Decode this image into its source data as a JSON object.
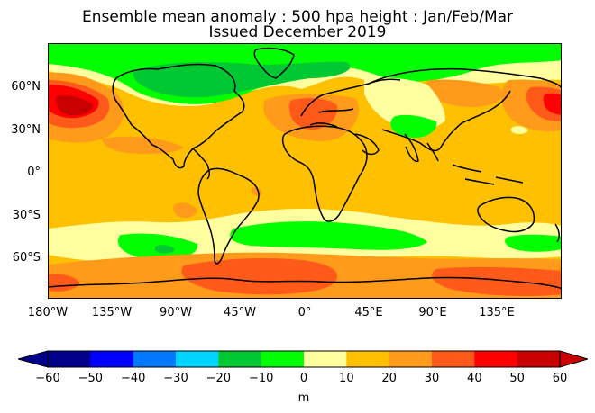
{
  "title_line1": "Ensemble mean anomaly : 500 hpa height : Jan/Feb/Mar",
  "title_line2": "Issued December 2019",
  "lat_labels": [
    "60°N",
    "30°N",
    "0°",
    "30°S",
    "60°S"
  ],
  "lon_labels": [
    "180°W",
    "135°W",
    "90°W",
    "45°W",
    "0°",
    "45°E",
    "90°E",
    "135°E"
  ],
  "colorbar": {
    "ticks": [
      "−60",
      "−50",
      "−40",
      "−30",
      "−20",
      "−10",
      "0",
      "10",
      "20",
      "30",
      "40",
      "50",
      "60"
    ],
    "unit": "m",
    "colors": [
      "#00008b",
      "#0000ff",
      "#0078ff",
      "#00d4ff",
      "#00c832",
      "#00ff00",
      "#ffffa0",
      "#ffc000",
      "#ff9a1a",
      "#ff5a1a",
      "#ff0000",
      "#c80000"
    ]
  },
  "map_colors": {
    "background": "#ffc000",
    "neg10": "#00ff00",
    "neg20": "#00c832",
    "pos0": "#ffffa0",
    "pos20": "#ff9a1a",
    "pos30": "#ff5a1a",
    "pos40": "#ff0000",
    "pos50": "#c80000"
  }
}
